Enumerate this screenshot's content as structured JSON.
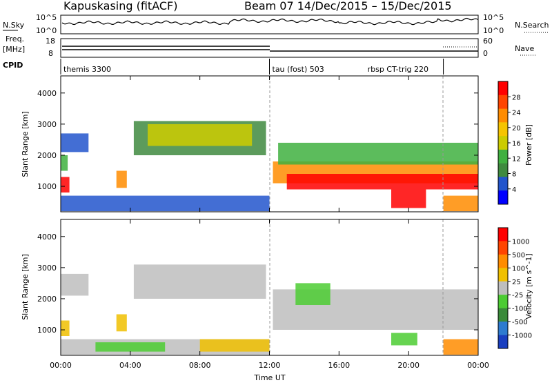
{
  "header": {
    "station": "Kapuskasing (fitACF)",
    "beam_range": "Beam 07  14/Dec/2015 – 15/Dec/2015"
  },
  "summary_labels": {
    "nsky": "N.Sky",
    "nsky_ticks": [
      "10^5",
      "10^0"
    ],
    "nsearch": "N.Search",
    "nsearch_ticks": [
      "10^5",
      "10^0"
    ],
    "freq_line1": "Freq.",
    "freq_line2": "[MHz]",
    "freq_ticks": [
      "18",
      "8"
    ],
    "nave": "Nave",
    "nave_ticks": [
      "60",
      "0"
    ],
    "cpid": "CPID"
  },
  "cpid_segments": [
    {
      "label": "themis 3300",
      "start_hour": 0
    },
    {
      "label": "tau (fost) 503",
      "start_hour": 12
    },
    {
      "label": "rbsp CT-trig 220",
      "start_hour": 22
    }
  ],
  "colorbars": {
    "power": {
      "label": "Power [dB]",
      "ticks": [
        "28",
        "24",
        "20",
        "16",
        "12",
        "8",
        "4"
      ],
      "colors": [
        "#0000ff",
        "#2255cc",
        "#3f8a3f",
        "#40b040",
        "#cccc00",
        "#f6c400",
        "#ff8c00",
        "#ff4500",
        "#ff0000"
      ]
    },
    "velocity": {
      "label": "Velocity [m s^-1]",
      "ticks": [
        "1000",
        "500",
        "100",
        "25",
        "-25",
        "-100",
        "-500",
        "-1000"
      ],
      "colors": [
        "#1a3fc0",
        "#2e7bd0",
        "#3a8a3a",
        "#4ccc33",
        "#bebebe",
        "#f0c000",
        "#ff8c00",
        "#ff4500",
        "#ff0000"
      ]
    }
  },
  "chart_data": [
    {
      "type": "heatmap",
      "panel": "power",
      "title": "",
      "ylabel": "Slant Range [km]",
      "xlabel": "",
      "ylim": [
        180,
        4550
      ],
      "xlim": [
        0,
        24
      ],
      "yticks": [
        "4000",
        "3000",
        "2000",
        "1000"
      ],
      "xticks": [
        "00:00",
        "04:00",
        "08:00",
        "12:00",
        "16:00",
        "20:00",
        "00:00"
      ],
      "regions": [
        {
          "t0": 0.0,
          "t1": 12.0,
          "r0": 200,
          "r1": 700,
          "color": "#2255cc"
        },
        {
          "t0": 0.0,
          "t1": 0.5,
          "r0": 800,
          "r1": 1300,
          "color": "#ff0000"
        },
        {
          "t0": 0.0,
          "t1": 0.4,
          "r0": 1500,
          "r1": 2000,
          "color": "#40b040"
        },
        {
          "t0": 0.0,
          "t1": 1.6,
          "r0": 2100,
          "r1": 2700,
          "color": "#2255cc"
        },
        {
          "t0": 3.2,
          "t1": 3.8,
          "r0": 950,
          "r1": 1500,
          "color": "#ff8c00"
        },
        {
          "t0": 4.2,
          "t1": 11.8,
          "r0": 2000,
          "r1": 3100,
          "color": "#3f8a3f"
        },
        {
          "t0": 5.0,
          "t1": 11.0,
          "r0": 2300,
          "r1": 3000,
          "color": "#cccc00"
        },
        {
          "t0": 12.2,
          "t1": 24.0,
          "r0": 1100,
          "r1": 1800,
          "color": "#ff8c00"
        },
        {
          "t0": 13.0,
          "t1": 24.0,
          "r0": 900,
          "r1": 1400,
          "color": "#ff0000"
        },
        {
          "t0": 12.5,
          "t1": 24.0,
          "r0": 1700,
          "r1": 2400,
          "color": "#40b040"
        },
        {
          "t0": 19.0,
          "t1": 21.0,
          "r0": 300,
          "r1": 900,
          "color": "#ff0000"
        },
        {
          "t0": 22.0,
          "t1": 24.0,
          "r0": 200,
          "r1": 700,
          "color": "#ff8c00"
        }
      ]
    },
    {
      "type": "heatmap",
      "panel": "velocity",
      "title": "",
      "ylabel": "Slant Range [km]",
      "xlabel": "Time UT",
      "ylim": [
        180,
        4550
      ],
      "xlim": [
        0,
        24
      ],
      "yticks": [
        "4000",
        "3000",
        "2000",
        "1000"
      ],
      "xticks": [
        "00:00",
        "04:00",
        "08:00",
        "12:00",
        "16:00",
        "20:00",
        "00:00"
      ],
      "regions": [
        {
          "t0": 0.0,
          "t1": 12.0,
          "r0": 200,
          "r1": 700,
          "color": "#bebebe"
        },
        {
          "t0": 2.0,
          "t1": 6.0,
          "r0": 300,
          "r1": 600,
          "color": "#4ccc33"
        },
        {
          "t0": 8.0,
          "t1": 12.0,
          "r0": 300,
          "r1": 700,
          "color": "#f0c000"
        },
        {
          "t0": 0.0,
          "t1": 0.5,
          "r0": 800,
          "r1": 1300,
          "color": "#f0c000"
        },
        {
          "t0": 0.0,
          "t1": 1.6,
          "r0": 2100,
          "r1": 2800,
          "color": "#bebebe"
        },
        {
          "t0": 3.2,
          "t1": 3.8,
          "r0": 950,
          "r1": 1500,
          "color": "#f0c000"
        },
        {
          "t0": 4.2,
          "t1": 11.8,
          "r0": 2000,
          "r1": 3100,
          "color": "#bebebe"
        },
        {
          "t0": 12.2,
          "t1": 24.0,
          "r0": 1000,
          "r1": 2300,
          "color": "#bebebe"
        },
        {
          "t0": 13.5,
          "t1": 15.5,
          "r0": 1800,
          "r1": 2500,
          "color": "#4ccc33"
        },
        {
          "t0": 19.0,
          "t1": 20.5,
          "r0": 500,
          "r1": 900,
          "color": "#4ccc33"
        },
        {
          "t0": 22.0,
          "t1": 24.0,
          "r0": 200,
          "r1": 700,
          "color": "#ff8c00"
        }
      ]
    }
  ]
}
